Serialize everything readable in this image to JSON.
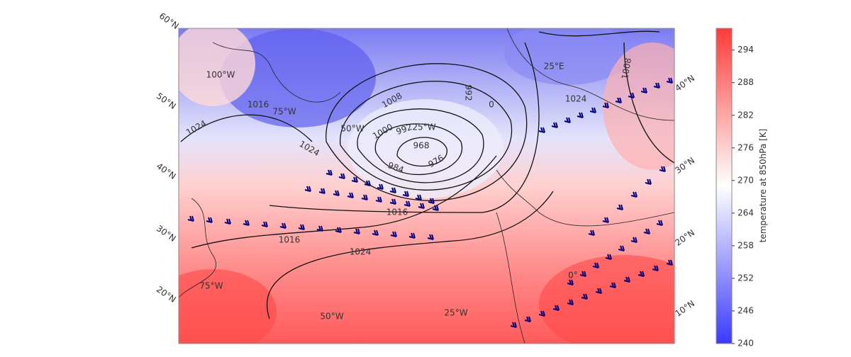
{
  "map": {
    "lat_labels_left": [
      "60°N",
      "50°N",
      "40°N",
      "30°N",
      "20°N"
    ],
    "lat_labels_right": [
      "40°N",
      "30°N",
      "20°N",
      "10°N"
    ],
    "lon_labels": [
      "100°W",
      "75°W",
      "50°W",
      "25°W",
      "25°E",
      "75°W",
      "50°W",
      "25°W",
      "0°"
    ],
    "isobar_labels": [
      "1016",
      "1024",
      "1024",
      "1008",
      "1000",
      "992",
      "968",
      "976",
      "984",
      "992",
      "0",
      "1024",
      "1008",
      "1016",
      "1016",
      "1024"
    ]
  },
  "colorbar": {
    "label": "temperature at 850hPa [K]",
    "lim": [
      240,
      298
    ],
    "ticks": [
      240,
      246,
      252,
      258,
      264,
      270,
      276,
      282,
      288,
      294
    ],
    "colors": [
      "#3a3aff",
      "#ffffff",
      "#ff3a3a"
    ]
  }
}
